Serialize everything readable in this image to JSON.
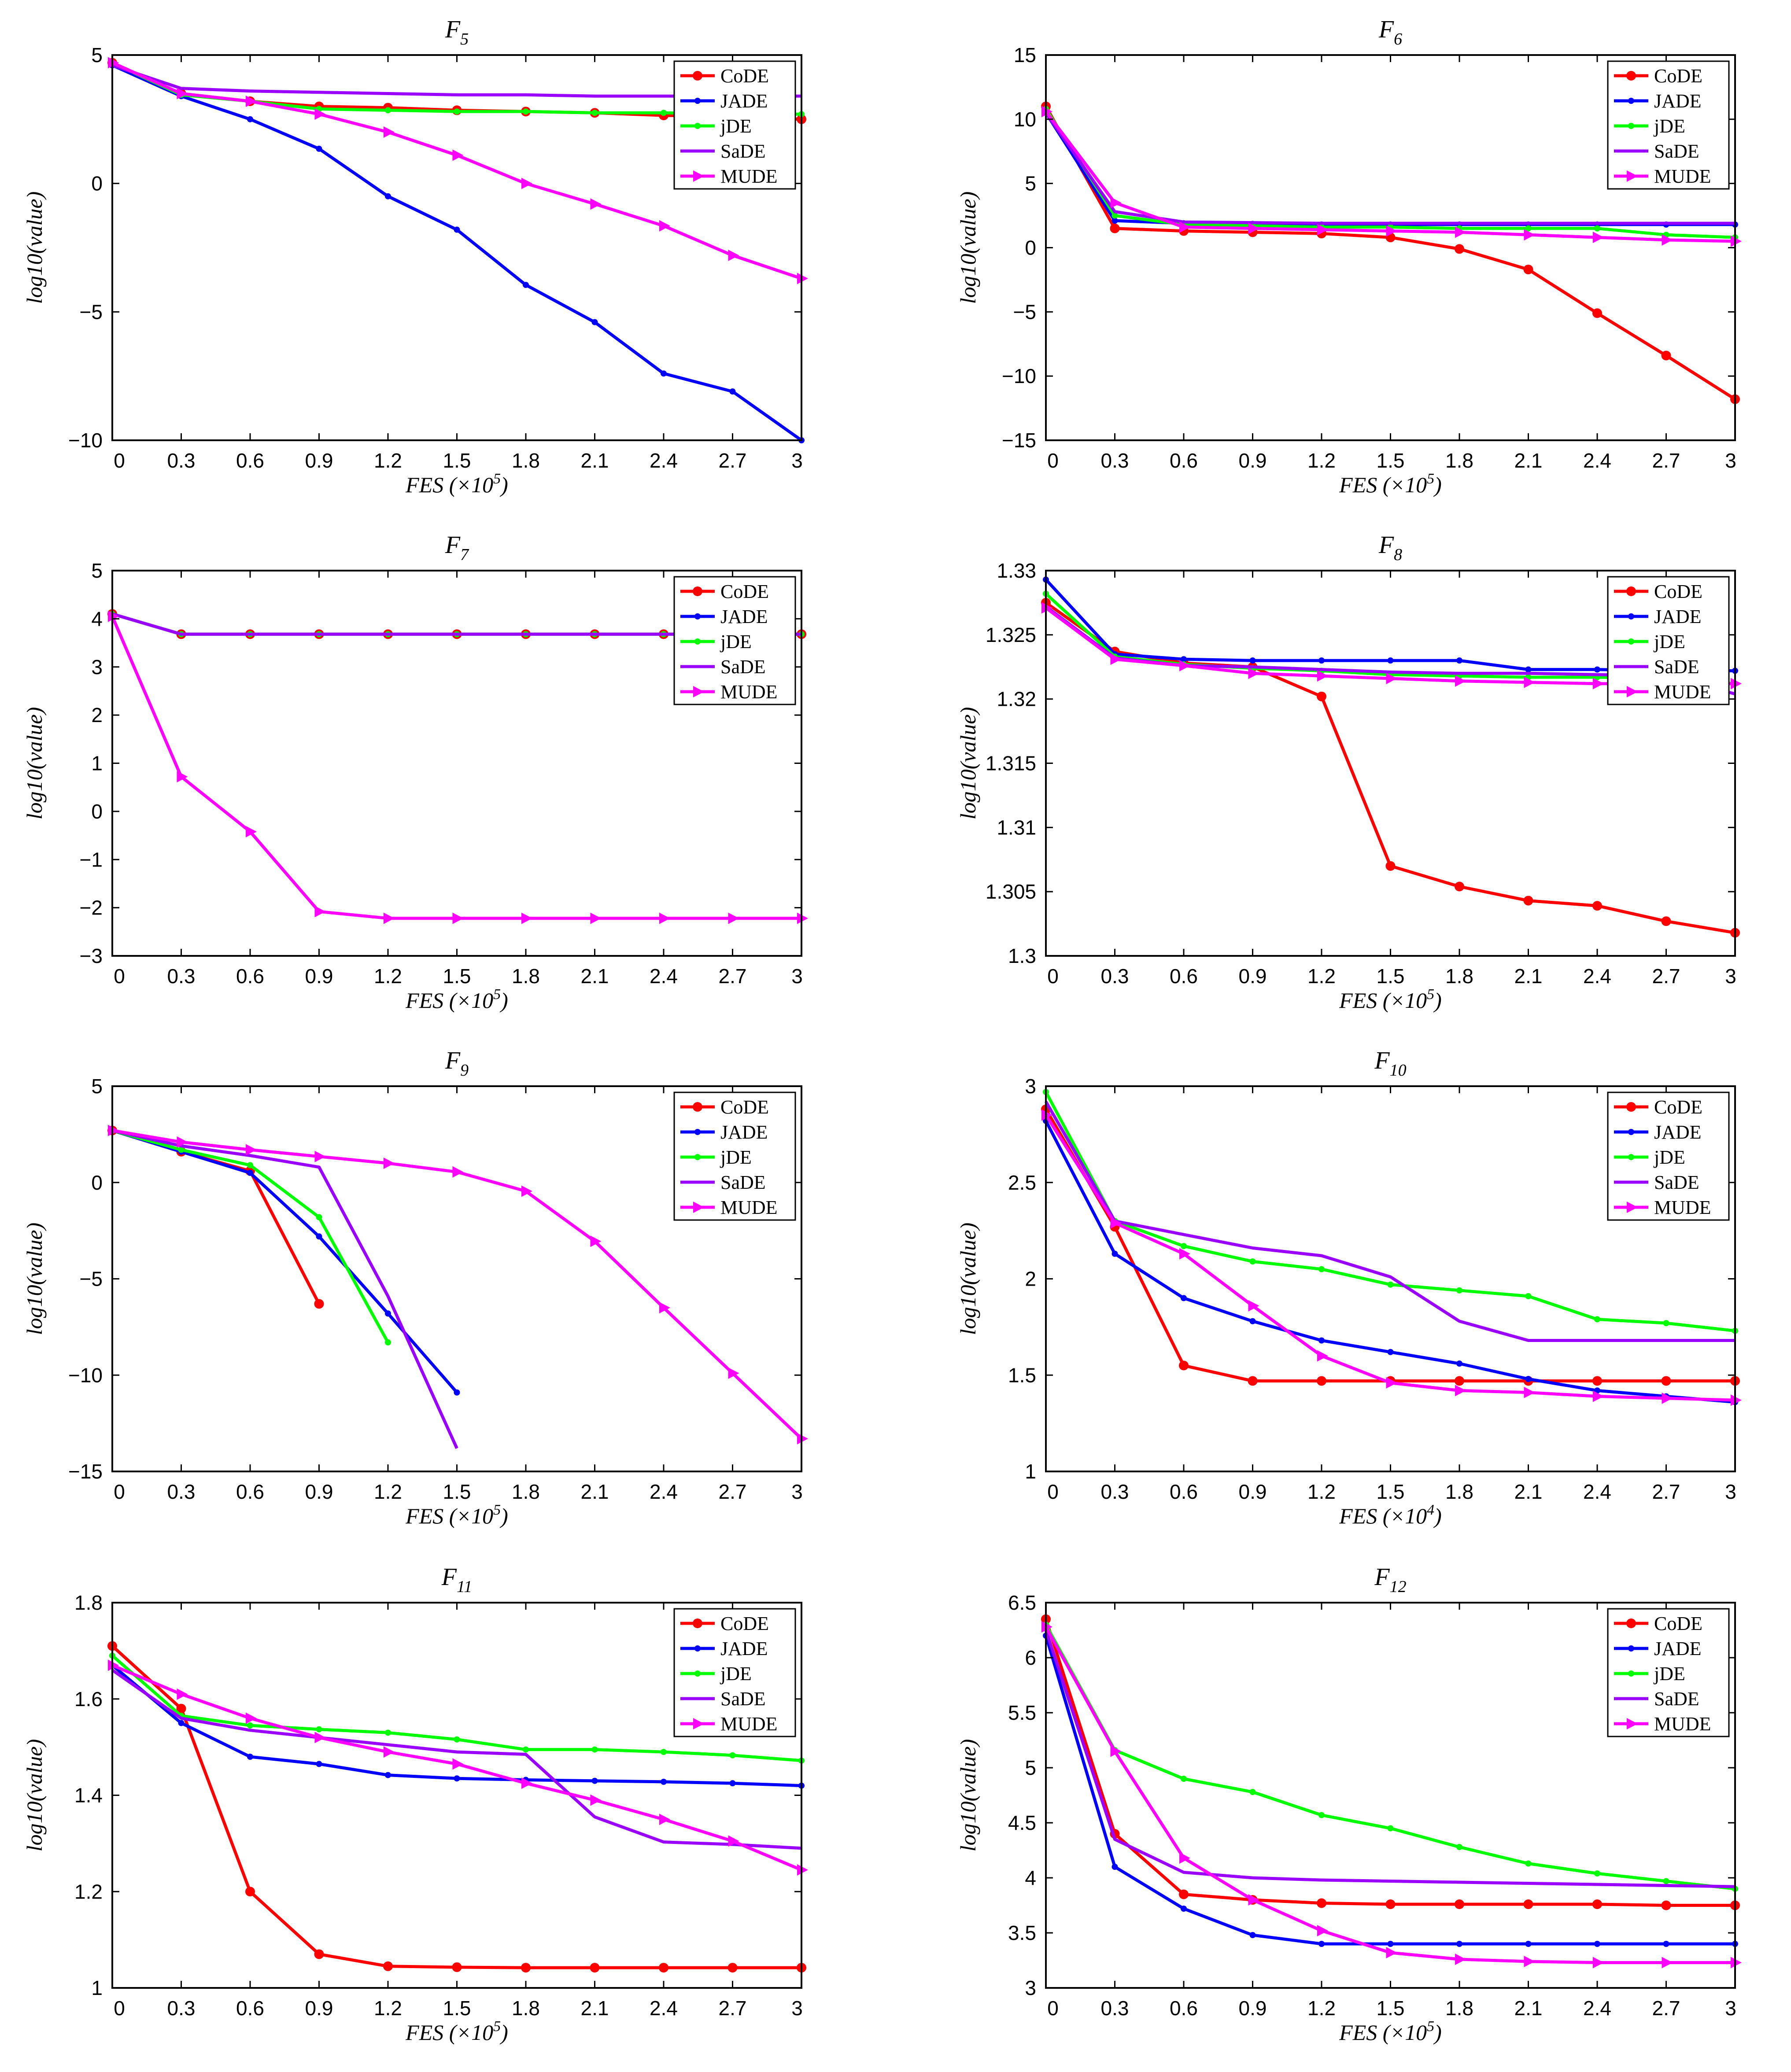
{
  "chart_data": [
    {
      "type": "line",
      "title": "F",
      "title_sub": "5",
      "xlabel": "FES",
      "xunit": "(×10",
      "xexp": "5",
      "ylabel": "log10(value)",
      "x": [
        0,
        0.3,
        0.6,
        0.9,
        1.2,
        1.5,
        1.8,
        2.1,
        2.4,
        2.7,
        3
      ],
      "xticks": [
        "0",
        "0.3",
        "0.6",
        "0.9",
        "1.2",
        "1.5",
        "1.8",
        "2.1",
        "2.4",
        "2.7",
        "3"
      ],
      "ylim": [
        -10,
        5
      ],
      "yticks": [
        -10,
        -5,
        0,
        5
      ],
      "ytick_labels": [
        "−10",
        "−5",
        "0",
        "5"
      ],
      "series": [
        {
          "name": "CoDE",
          "color": "#ff0000",
          "values": [
            4.7,
            3.5,
            3.2,
            3.0,
            2.95,
            2.85,
            2.8,
            2.75,
            2.65,
            2.6,
            2.5
          ]
        },
        {
          "name": "JADE",
          "color": "#0000ff",
          "values": [
            4.6,
            3.4,
            2.5,
            1.35,
            -0.5,
            -1.8,
            -3.95,
            -5.4,
            -7.4,
            -8.1,
            -10.0
          ]
        },
        {
          "name": "jDE",
          "color": "#00ff00",
          "values": [
            4.7,
            3.45,
            3.2,
            2.9,
            2.85,
            2.8,
            2.8,
            2.75,
            2.75,
            2.7,
            2.7
          ]
        },
        {
          "name": "SaDE",
          "color": "#9900ff",
          "values": [
            4.6,
            3.7,
            3.6,
            3.55,
            3.5,
            3.45,
            3.45,
            3.4,
            3.4,
            3.4,
            3.4
          ]
        },
        {
          "name": "MUDE",
          "color": "#ff00ff",
          "values": [
            4.7,
            3.5,
            3.2,
            2.7,
            2.0,
            1.1,
            0.0,
            -0.8,
            -1.65,
            -2.8,
            -3.7
          ]
        }
      ]
    },
    {
      "type": "line",
      "title": "F",
      "title_sub": "6",
      "xlabel": "FES",
      "xunit": "(×10",
      "xexp": "5",
      "ylabel": "log10(value)",
      "x": [
        0,
        0.3,
        0.6,
        0.9,
        1.2,
        1.5,
        1.8,
        2.1,
        2.4,
        2.7,
        3
      ],
      "xticks": [
        "0",
        "0.3",
        "0.6",
        "0.9",
        "1.2",
        "1.5",
        "1.8",
        "2.1",
        "2.4",
        "2.7",
        "3"
      ],
      "ylim": [
        -15,
        15
      ],
      "yticks": [
        -15,
        -10,
        -5,
        0,
        5,
        10,
        15
      ],
      "ytick_labels": [
        "−15",
        "−10",
        "−5",
        "0",
        "5",
        "10",
        "15"
      ],
      "series": [
        {
          "name": "CoDE",
          "color": "#ff0000",
          "values": [
            11.0,
            1.5,
            1.3,
            1.2,
            1.1,
            0.8,
            -0.1,
            -1.7,
            -5.1,
            -8.4,
            -11.8
          ]
        },
        {
          "name": "JADE",
          "color": "#0000ff",
          "values": [
            10.5,
            2.1,
            1.9,
            1.85,
            1.8,
            1.8,
            1.8,
            1.8,
            1.8,
            1.8,
            1.8
          ]
        },
        {
          "name": "jDE",
          "color": "#00ff00",
          "values": [
            10.8,
            2.5,
            1.8,
            1.7,
            1.6,
            1.6,
            1.5,
            1.5,
            1.5,
            1.0,
            0.8
          ]
        },
        {
          "name": "SaDE",
          "color": "#9900ff",
          "values": [
            10.5,
            2.8,
            2.0,
            1.95,
            1.9,
            1.9,
            1.9,
            1.9,
            1.9,
            1.9,
            1.9
          ]
        },
        {
          "name": "MUDE",
          "color": "#ff00ff",
          "values": [
            10.6,
            3.5,
            1.6,
            1.5,
            1.4,
            1.3,
            1.2,
            1.0,
            0.8,
            0.6,
            0.5
          ]
        }
      ]
    },
    {
      "type": "line",
      "title": "F",
      "title_sub": "7",
      "xlabel": "FES",
      "xunit": "(×10",
      "xexp": "5",
      "ylabel": "log10(value)",
      "x": [
        0,
        0.3,
        0.6,
        0.9,
        1.2,
        1.5,
        1.8,
        2.1,
        2.4,
        2.7,
        3
      ],
      "xticks": [
        "0",
        "0.3",
        "0.6",
        "0.9",
        "1.2",
        "1.5",
        "1.8",
        "2.1",
        "2.4",
        "2.7",
        "3"
      ],
      "ylim": [
        -3,
        5
      ],
      "yticks": [
        -3,
        -2,
        -1,
        0,
        1,
        2,
        3,
        4,
        5
      ],
      "ytick_labels": [
        "−3",
        "−2",
        "−1",
        "0",
        "1",
        "2",
        "3",
        "4",
        "5"
      ],
      "series": [
        {
          "name": "CoDE",
          "color": "#ff0000",
          "values": [
            4.1,
            3.68,
            3.68,
            3.68,
            3.68,
            3.68,
            3.68,
            3.68,
            3.68,
            3.68,
            3.68
          ]
        },
        {
          "name": "JADE",
          "color": "#0000ff",
          "values": [
            4.1,
            3.68,
            3.68,
            3.68,
            3.68,
            3.68,
            3.68,
            3.68,
            3.68,
            3.68,
            3.68
          ]
        },
        {
          "name": "jDE",
          "color": "#00ff00",
          "values": [
            4.1,
            3.68,
            3.68,
            3.68,
            3.68,
            3.68,
            3.68,
            3.68,
            3.68,
            3.68,
            3.68
          ]
        },
        {
          "name": "SaDE",
          "color": "#9900ff",
          "values": [
            4.1,
            3.68,
            3.68,
            3.68,
            3.68,
            3.68,
            3.68,
            3.68,
            3.68,
            3.68,
            3.68
          ]
        },
        {
          "name": "MUDE",
          "color": "#ff00ff",
          "values": [
            4.05,
            0.72,
            -0.42,
            -2.08,
            -2.22,
            -2.22,
            -2.22,
            -2.22,
            -2.22,
            -2.22,
            -2.22
          ]
        }
      ]
    },
    {
      "type": "line",
      "title": "F",
      "title_sub": "8",
      "xlabel": "FES",
      "xunit": "(×10",
      "xexp": "5",
      "ylabel": "log10(value)",
      "x": [
        0,
        0.3,
        0.6,
        0.9,
        1.2,
        1.5,
        1.8,
        2.1,
        2.4,
        2.7,
        3
      ],
      "xticks": [
        "0",
        "0.3",
        "0.6",
        "0.9",
        "1.2",
        "1.5",
        "1.8",
        "2.1",
        "2.4",
        "2.7",
        "3"
      ],
      "ylim": [
        1.3,
        1.33
      ],
      "yticks": [
        1.3,
        1.305,
        1.31,
        1.315,
        1.32,
        1.325,
        1.33
      ],
      "ytick_labels": [
        "1.3",
        "1.305",
        "1.31",
        "1.315",
        "1.32",
        "1.325",
        "1.33"
      ],
      "series": [
        {
          "name": "CoDE",
          "color": "#ff0000",
          "values": [
            1.3275,
            1.3237,
            1.3228,
            1.3225,
            1.3202,
            1.307,
            1.3054,
            1.3043,
            1.3039,
            1.3027,
            1.3018
          ]
        },
        {
          "name": "JADE",
          "color": "#0000ff",
          "values": [
            1.3293,
            1.3235,
            1.3231,
            1.323,
            1.323,
            1.323,
            1.323,
            1.3223,
            1.3223,
            1.3222,
            1.3222
          ]
        },
        {
          "name": "jDE",
          "color": "#00ff00",
          "values": [
            1.3282,
            1.3233,
            1.3227,
            1.3224,
            1.3222,
            1.3219,
            1.3218,
            1.3217,
            1.3217,
            1.3216,
            1.3212
          ]
        },
        {
          "name": "SaDE",
          "color": "#9900ff",
          "values": [
            1.3272,
            1.3232,
            1.3226,
            1.3225,
            1.3223,
            1.3221,
            1.322,
            1.322,
            1.3219,
            1.3218,
            1.3204
          ]
        },
        {
          "name": "MUDE",
          "color": "#ff00ff",
          "values": [
            1.3271,
            1.3231,
            1.3226,
            1.322,
            1.3218,
            1.3216,
            1.3214,
            1.3213,
            1.3212,
            1.3212,
            1.3212
          ]
        }
      ]
    },
    {
      "type": "line",
      "title": "F",
      "title_sub": "9",
      "xlabel": "FES",
      "xunit": "(×10",
      "xexp": "5",
      "ylabel": "log10(value)",
      "x": [
        0,
        0.3,
        0.6,
        0.9,
        1.2,
        1.5,
        1.8,
        2.1,
        2.4,
        2.7,
        3
      ],
      "xticks": [
        "0",
        "0.3",
        "0.6",
        "0.9",
        "1.2",
        "1.5",
        "1.8",
        "2.1",
        "2.4",
        "2.7",
        "3"
      ],
      "ylim": [
        -15,
        5
      ],
      "yticks": [
        -15,
        -10,
        -5,
        0,
        5
      ],
      "ytick_labels": [
        "−15",
        "−10",
        "−5",
        "0",
        "5"
      ],
      "series": [
        {
          "name": "CoDE",
          "color": "#ff0000",
          "values": [
            2.7,
            1.6,
            0.6,
            -6.3,
            null,
            null,
            null,
            null,
            null,
            null,
            null
          ]
        },
        {
          "name": "JADE",
          "color": "#0000ff",
          "values": [
            2.7,
            1.6,
            0.5,
            -2.8,
            -6.8,
            -10.9,
            null,
            null,
            null,
            null,
            null
          ]
        },
        {
          "name": "jDE",
          "color": "#00ff00",
          "values": [
            2.7,
            1.7,
            0.9,
            -1.8,
            -8.3,
            null,
            null,
            null,
            null,
            null,
            null
          ]
        },
        {
          "name": "SaDE",
          "color": "#9900ff",
          "values": [
            2.7,
            1.9,
            1.4,
            0.8,
            -5.9,
            -13.8,
            null,
            null,
            null,
            null,
            null
          ]
        },
        {
          "name": "MUDE",
          "color": "#ff00ff",
          "values": [
            2.7,
            2.1,
            1.7,
            1.35,
            1.0,
            0.55,
            -0.45,
            -3.05,
            -6.5,
            -9.9,
            -13.3
          ]
        }
      ]
    },
    {
      "type": "line",
      "title": "F",
      "title_sub": "10",
      "xlabel": "FES",
      "xunit": "(×10",
      "xexp": "4",
      "ylabel": "log10(value)",
      "x": [
        0,
        0.3,
        0.6,
        0.9,
        1.2,
        1.5,
        1.8,
        2.1,
        2.4,
        2.7,
        3
      ],
      "xticks": [
        "0",
        "0.3",
        "0.6",
        "0.9",
        "1.2",
        "1.5",
        "1.8",
        "2.1",
        "2.4",
        "2.7",
        "3"
      ],
      "ylim": [
        1,
        3
      ],
      "yticks": [
        1,
        1.5,
        2,
        2.5,
        3
      ],
      "ytick_labels": [
        "1",
        "1.5",
        "2",
        "2.5",
        "3"
      ],
      "series": [
        {
          "name": "CoDE",
          "color": "#ff0000",
          "values": [
            2.88,
            2.27,
            1.55,
            1.47,
            1.47,
            1.47,
            1.47,
            1.47,
            1.47,
            1.47,
            1.47
          ]
        },
        {
          "name": "JADE",
          "color": "#0000ff",
          "values": [
            2.82,
            2.13,
            1.9,
            1.78,
            1.68,
            1.62,
            1.56,
            1.48,
            1.42,
            1.39,
            1.36
          ]
        },
        {
          "name": "jDE",
          "color": "#00ff00",
          "values": [
            2.97,
            2.3,
            2.17,
            2.09,
            2.05,
            1.97,
            1.94,
            1.91,
            1.79,
            1.77,
            1.73
          ]
        },
        {
          "name": "SaDE",
          "color": "#9900ff",
          "values": [
            2.92,
            2.3,
            2.23,
            2.16,
            2.12,
            2.01,
            1.78,
            1.68,
            1.68,
            1.68,
            1.68
          ]
        },
        {
          "name": "MUDE",
          "color": "#ff00ff",
          "values": [
            2.85,
            2.29,
            2.13,
            1.86,
            1.6,
            1.46,
            1.42,
            1.41,
            1.39,
            1.38,
            1.37
          ]
        }
      ]
    },
    {
      "type": "line",
      "title": "F",
      "title_sub": "11",
      "xlabel": "FES",
      "xunit": "(×10",
      "xexp": "5",
      "ylabel": "log10(value)",
      "x": [
        0,
        0.3,
        0.6,
        0.9,
        1.2,
        1.5,
        1.8,
        2.1,
        2.4,
        2.7,
        3
      ],
      "xticks": [
        "0",
        "0.3",
        "0.6",
        "0.9",
        "1.2",
        "1.5",
        "1.8",
        "2.1",
        "2.4",
        "2.7",
        "3"
      ],
      "ylim": [
        1,
        1.8
      ],
      "yticks": [
        1,
        1.2,
        1.4,
        1.6,
        1.8
      ],
      "ytick_labels": [
        "1",
        "1.2",
        "1.4",
        "1.6",
        "1.8"
      ],
      "series": [
        {
          "name": "CoDE",
          "color": "#ff0000",
          "values": [
            1.71,
            1.58,
            1.2,
            1.07,
            1.045,
            1.043,
            1.042,
            1.042,
            1.042,
            1.042,
            1.042
          ]
        },
        {
          "name": "JADE",
          "color": "#0000ff",
          "values": [
            1.67,
            1.55,
            1.48,
            1.465,
            1.442,
            1.435,
            1.432,
            1.43,
            1.428,
            1.425,
            1.42
          ]
        },
        {
          "name": "jDE",
          "color": "#00ff00",
          "values": [
            1.69,
            1.565,
            1.545,
            1.537,
            1.53,
            1.516,
            1.495,
            1.495,
            1.49,
            1.483,
            1.472
          ]
        },
        {
          "name": "SaDE",
          "color": "#9900ff",
          "values": [
            1.66,
            1.56,
            1.535,
            1.52,
            1.505,
            1.49,
            1.485,
            1.355,
            1.303,
            1.298,
            1.29
          ]
        },
        {
          "name": "MUDE",
          "color": "#ff00ff",
          "values": [
            1.67,
            1.61,
            1.56,
            1.52,
            1.49,
            1.465,
            1.425,
            1.39,
            1.35,
            1.305,
            1.245
          ]
        }
      ]
    },
    {
      "type": "line",
      "title": "F",
      "title_sub": "12",
      "xlabel": "FES",
      "xunit": "(×10",
      "xexp": "5",
      "ylabel": "log10(value)",
      "x": [
        0,
        0.3,
        0.6,
        0.9,
        1.2,
        1.5,
        1.8,
        2.1,
        2.4,
        2.7,
        3
      ],
      "xticks": [
        "0",
        "0.3",
        "0.6",
        "0.9",
        "1.2",
        "1.5",
        "1.8",
        "2.1",
        "2.4",
        "2.7",
        "3"
      ],
      "ylim": [
        3,
        6.5
      ],
      "yticks": [
        3,
        3.5,
        4,
        4.5,
        5,
        5.5,
        6,
        6.5
      ],
      "ytick_labels": [
        "3",
        "3.5",
        "4",
        "4.5",
        "5",
        "5.5",
        "6",
        "6.5"
      ],
      "series": [
        {
          "name": "CoDE",
          "color": "#ff0000",
          "values": [
            6.35,
            4.4,
            3.85,
            3.8,
            3.77,
            3.76,
            3.76,
            3.76,
            3.76,
            3.75,
            3.75
          ]
        },
        {
          "name": "JADE",
          "color": "#0000ff",
          "values": [
            6.2,
            4.1,
            3.72,
            3.48,
            3.4,
            3.4,
            3.4,
            3.4,
            3.4,
            3.4,
            3.4
          ]
        },
        {
          "name": "jDE",
          "color": "#00ff00",
          "values": [
            6.3,
            5.16,
            4.9,
            4.78,
            4.57,
            4.45,
            4.28,
            4.13,
            4.04,
            3.97,
            3.9
          ]
        },
        {
          "name": "SaDE",
          "color": "#9900ff",
          "values": [
            6.25,
            4.35,
            4.05,
            4.0,
            3.98,
            3.97,
            3.96,
            3.95,
            3.94,
            3.93,
            3.92
          ]
        },
        {
          "name": "MUDE",
          "color": "#ff00ff",
          "values": [
            6.28,
            5.15,
            4.18,
            3.8,
            3.52,
            3.32,
            3.26,
            3.24,
            3.23,
            3.23,
            3.23
          ]
        }
      ]
    }
  ]
}
